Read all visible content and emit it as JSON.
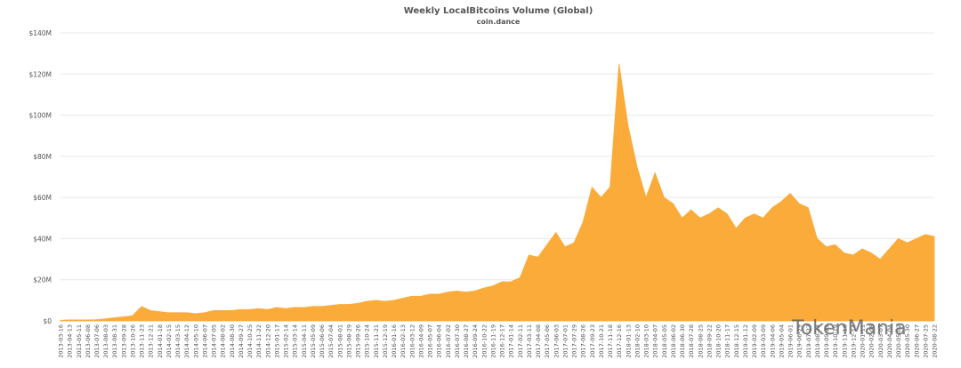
{
  "chart_data": {
    "type": "area",
    "title": "Weekly LocalBitcoins Volume (Global)",
    "subtitle": "coin.dance",
    "watermark": "TokenMania",
    "color": "#fbab3a",
    "grid": true,
    "ylim": [
      0,
      140000000
    ],
    "yticks": [
      {
        "value": 0,
        "label": "$0"
      },
      {
        "value": 20000000,
        "label": "$20M"
      },
      {
        "value": 40000000,
        "label": "$40M"
      },
      {
        "value": 60000000,
        "label": "$60M"
      },
      {
        "value": 80000000,
        "label": "$80M"
      },
      {
        "value": 100000000,
        "label": "$100M"
      },
      {
        "value": 120000000,
        "label": "$120M"
      },
      {
        "value": 140000000,
        "label": "$140M"
      }
    ],
    "categories": [
      "2013-03-16",
      "2013-04-13",
      "2013-05-11",
      "2013-06-08",
      "2013-07-06",
      "2013-08-03",
      "2013-08-31",
      "2013-09-28",
      "2013-10-26",
      "2013-11-23",
      "2013-12-21",
      "2014-01-18",
      "2014-02-15",
      "2014-03-15",
      "2014-04-12",
      "2014-05-10",
      "2014-06-07",
      "2014-07-05",
      "2014-08-02",
      "2014-08-30",
      "2014-09-27",
      "2014-10-25",
      "2014-11-22",
      "2014-12-20",
      "2015-01-17",
      "2015-02-14",
      "2015-03-14",
      "2015-04-11",
      "2015-05-09",
      "2015-06-06",
      "2015-07-04",
      "2015-08-01",
      "2015-08-29",
      "2015-09-26",
      "2015-10-24",
      "2015-11-21",
      "2015-12-19",
      "2016-01-16",
      "2016-02-13",
      "2016-03-12",
      "2016-04-09",
      "2016-05-07",
      "2016-06-04",
      "2016-07-02",
      "2016-07-30",
      "2016-08-27",
      "2016-09-24",
      "2016-10-22",
      "2016-11-19",
      "2016-12-17",
      "2017-01-14",
      "2017-02-11",
      "2017-03-11",
      "2017-04-08",
      "2017-05-06",
      "2017-06-03",
      "2017-07-01",
      "2017-07-29",
      "2017-08-26",
      "2017-09-23",
      "2017-10-21",
      "2017-11-18",
      "2017-12-16",
      "2018-01-13",
      "2018-02-10",
      "2018-03-10",
      "2018-04-07",
      "2018-05-05",
      "2018-06-02",
      "2018-06-30",
      "2018-07-28",
      "2018-08-25",
      "2018-09-22",
      "2018-10-20",
      "2018-11-17",
      "2018-12-15",
      "2019-01-12",
      "2019-02-09",
      "2019-03-09",
      "2019-04-06",
      "2019-05-04",
      "2019-06-01",
      "2019-06-29",
      "2019-07-27",
      "2019-08-24",
      "2019-09-21",
      "2019-10-19",
      "2019-11-16",
      "2019-12-14",
      "2020-01-11",
      "2020-02-08",
      "2020-03-07",
      "2020-04-04",
      "2020-05-02",
      "2020-05-30",
      "2020-06-27",
      "2020-07-25",
      "2020-08-22"
    ],
    "values": [
      300000,
      500000,
      500000,
      500000,
      600000,
      1000000,
      1500000,
      2000000,
      2500000,
      7000000,
      5000000,
      4500000,
      4000000,
      4000000,
      4000000,
      3500000,
      4000000,
      5000000,
      5000000,
      5000000,
      5500000,
      5500000,
      6000000,
      5500000,
      6500000,
      6000000,
      6500000,
      6500000,
      7000000,
      7000000,
      7500000,
      8000000,
      8000000,
      8500000,
      9500000,
      10000000,
      9500000,
      10000000,
      11000000,
      12000000,
      12000000,
      13000000,
      13000000,
      14000000,
      14500000,
      14000000,
      14500000,
      16000000,
      17000000,
      19000000,
      19000000,
      21000000,
      32000000,
      31000000,
      37000000,
      43000000,
      36000000,
      38000000,
      48000000,
      65000000,
      60000000,
      65000000,
      125000000,
      95000000,
      75000000,
      60000000,
      72000000,
      60000000,
      57000000,
      50000000,
      54000000,
      50000000,
      52000000,
      55000000,
      52000000,
      45000000,
      50000000,
      52000000,
      50000000,
      55000000,
      58000000,
      62000000,
      57000000,
      55000000,
      40000000,
      36000000,
      37000000,
      33000000,
      32000000,
      35000000,
      33000000,
      30000000,
      35000000,
      40000000,
      38000000,
      40000000,
      42000000,
      41000000
    ]
  }
}
